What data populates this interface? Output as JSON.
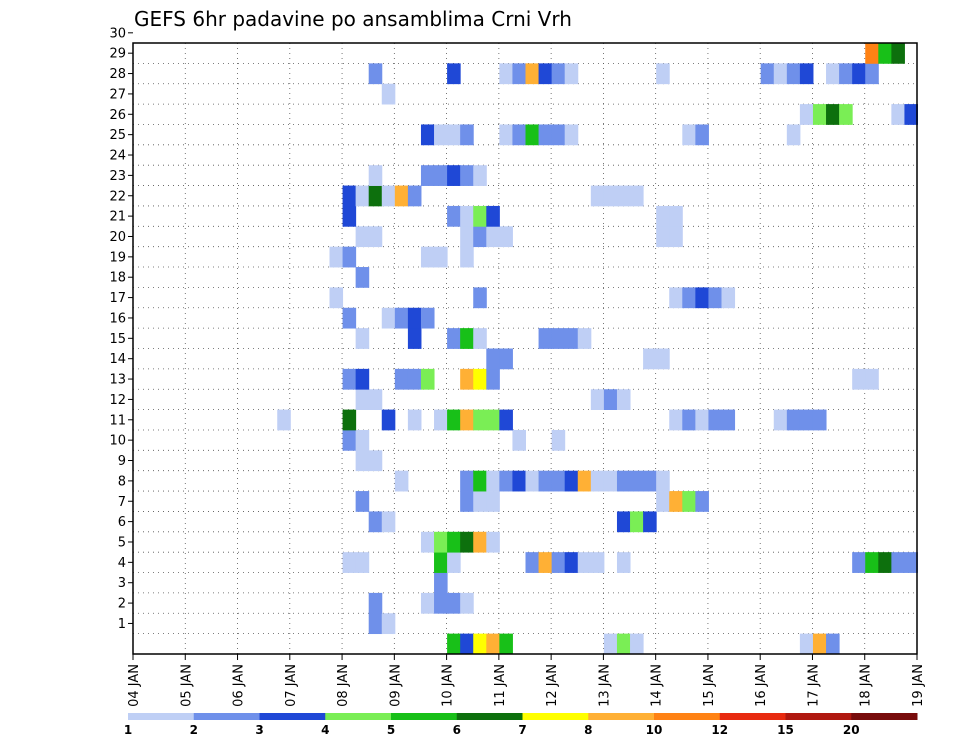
{
  "chart_data": {
    "type": "heatmap",
    "title": "GEFS 6hr padavine po ansamblima Crni Vrh",
    "y_ticks": [
      "1",
      "2",
      "3",
      "4",
      "5",
      "6",
      "7",
      "8",
      "9",
      "10",
      "11",
      "12",
      "13",
      "14",
      "15",
      "16",
      "17",
      "18",
      "19",
      "20",
      "21",
      "22",
      "23",
      "24",
      "25",
      "26",
      "27",
      "28",
      "29",
      "30"
    ],
    "x_ticks": [
      "04 JAN",
      "05 JAN",
      "06 JAN",
      "07 JAN",
      "08 JAN",
      "09 JAN",
      "10 JAN",
      "11 JAN",
      "12 JAN",
      "13 JAN",
      "14 JAN",
      "15 JAN",
      "16 JAN",
      "17 JAN",
      "18 JAN",
      "19 JAN"
    ],
    "x_start_day": 4,
    "steps_per_day": 4,
    "grid": true,
    "legend": {
      "position": "bottom",
      "labels": [
        "1",
        "2",
        "3",
        "4",
        "5",
        "6",
        "7",
        "8",
        "10",
        "12",
        "15",
        "20"
      ],
      "colors": [
        "#bfcff5",
        "#6f90ea",
        "#1f48d6",
        "#7aee55",
        "#18c018",
        "#0d700d",
        "#ffff00",
        "#ffb035",
        "#ff8214",
        "#e82a10",
        "#b01810",
        "#780c0c"
      ]
    },
    "cells": [
      [
        1,
        8.5,
        2
      ],
      [
        1,
        8.75,
        1
      ],
      [
        2,
        8.5,
        2
      ],
      [
        2,
        9.5,
        1
      ],
      [
        2,
        9.75,
        2
      ],
      [
        2,
        10.0,
        2
      ],
      [
        2,
        10.25,
        1
      ],
      [
        3,
        9.75,
        2
      ],
      [
        4,
        8.0,
        1
      ],
      [
        4,
        8.25,
        1
      ],
      [
        4,
        9.75,
        5
      ],
      [
        4,
        10.0,
        1
      ],
      [
        4,
        11.5,
        2
      ],
      [
        4,
        11.75,
        8
      ],
      [
        4,
        12.0,
        2
      ],
      [
        4,
        12.25,
        3
      ],
      [
        4,
        12.5,
        1
      ],
      [
        4,
        12.75,
        1
      ],
      [
        4,
        13.25,
        1
      ],
      [
        4,
        17.75,
        2
      ],
      [
        4,
        18.0,
        5
      ],
      [
        4,
        18.25,
        6
      ],
      [
        4,
        18.5,
        2
      ],
      [
        4,
        18.75,
        2
      ],
      [
        5,
        9.5,
        1
      ],
      [
        5,
        9.75,
        4
      ],
      [
        5,
        10.0,
        5
      ],
      [
        5,
        10.25,
        6
      ],
      [
        5,
        10.5,
        8
      ],
      [
        5,
        10.75,
        1
      ],
      [
        6,
        8.5,
        2
      ],
      [
        6,
        8.75,
        1
      ],
      [
        6,
        13.25,
        3
      ],
      [
        6,
        13.5,
        4
      ],
      [
        6,
        13.75,
        3
      ],
      [
        7,
        8.25,
        2
      ],
      [
        7,
        10.25,
        2
      ],
      [
        7,
        10.5,
        1
      ],
      [
        7,
        10.75,
        1
      ],
      [
        7,
        14.0,
        1
      ],
      [
        7,
        14.25,
        8
      ],
      [
        7,
        14.5,
        4
      ],
      [
        7,
        14.75,
        2
      ],
      [
        8,
        9.0,
        1
      ],
      [
        8,
        10.25,
        2
      ],
      [
        8,
        10.5,
        5
      ],
      [
        8,
        10.75,
        1
      ],
      [
        8,
        11.0,
        2
      ],
      [
        8,
        11.25,
        3
      ],
      [
        8,
        11.5,
        1
      ],
      [
        8,
        11.75,
        2
      ],
      [
        8,
        12.0,
        2
      ],
      [
        8,
        12.25,
        3
      ],
      [
        8,
        12.5,
        8
      ],
      [
        8,
        12.75,
        1
      ],
      [
        8,
        13.0,
        1
      ],
      [
        8,
        13.25,
        2
      ],
      [
        8,
        13.5,
        2
      ],
      [
        8,
        13.75,
        2
      ],
      [
        8,
        14.0,
        1
      ],
      [
        9,
        8.25,
        1
      ],
      [
        9,
        8.5,
        1
      ],
      [
        10,
        8.0,
        2
      ],
      [
        10,
        8.25,
        1
      ],
      [
        10,
        11.25,
        1
      ],
      [
        10,
        12.0,
        1
      ],
      [
        11,
        6.75,
        1
      ],
      [
        11,
        8.0,
        6
      ],
      [
        11,
        8.75,
        3
      ],
      [
        11,
        9.25,
        1
      ],
      [
        11,
        9.75,
        1
      ],
      [
        11,
        10.0,
        5
      ],
      [
        11,
        10.25,
        8
      ],
      [
        11,
        10.5,
        4
      ],
      [
        11,
        10.75,
        4
      ],
      [
        11,
        11.0,
        3
      ],
      [
        11,
        14.25,
        1
      ],
      [
        11,
        14.5,
        2
      ],
      [
        11,
        14.75,
        1
      ],
      [
        11,
        15.0,
        2
      ],
      [
        11,
        15.25,
        2
      ],
      [
        11,
        16.25,
        1
      ],
      [
        11,
        16.5,
        2
      ],
      [
        11,
        16.75,
        2
      ],
      [
        11,
        17.0,
        2
      ],
      [
        12,
        8.25,
        1
      ],
      [
        12,
        8.5,
        1
      ],
      [
        12,
        12.75,
        1
      ],
      [
        12,
        13.0,
        2
      ],
      [
        12,
        13.25,
        1
      ],
      [
        13,
        8.0,
        2
      ],
      [
        13,
        8.25,
        3
      ],
      [
        13,
        9.0,
        2
      ],
      [
        13,
        9.25,
        2
      ],
      [
        13,
        9.5,
        4
      ],
      [
        13,
        10.25,
        8
      ],
      [
        13,
        10.5,
        7
      ],
      [
        13,
        10.75,
        2
      ],
      [
        13,
        17.75,
        1
      ],
      [
        13,
        18.0,
        1
      ],
      [
        14,
        10.75,
        2
      ],
      [
        14,
        11.0,
        2
      ],
      [
        14,
        13.75,
        1
      ],
      [
        14,
        14.0,
        1
      ],
      [
        15,
        8.25,
        1
      ],
      [
        15,
        9.25,
        3
      ],
      [
        15,
        10.0,
        2
      ],
      [
        15,
        10.25,
        5
      ],
      [
        15,
        10.5,
        1
      ],
      [
        15,
        11.75,
        2
      ],
      [
        15,
        12.0,
        2
      ],
      [
        15,
        12.25,
        2
      ],
      [
        15,
        12.5,
        1
      ],
      [
        16,
        8.0,
        2
      ],
      [
        16,
        8.75,
        1
      ],
      [
        16,
        9.0,
        2
      ],
      [
        16,
        9.25,
        3
      ],
      [
        16,
        9.5,
        2
      ],
      [
        17,
        7.75,
        1
      ],
      [
        17,
        10.5,
        2
      ],
      [
        17,
        14.25,
        1
      ],
      [
        17,
        14.5,
        2
      ],
      [
        17,
        14.75,
        3
      ],
      [
        17,
        15.0,
        2
      ],
      [
        17,
        15.25,
        1
      ],
      [
        18,
        8.25,
        2
      ],
      [
        19,
        7.75,
        1
      ],
      [
        19,
        8.0,
        2
      ],
      [
        19,
        9.5,
        1
      ],
      [
        19,
        9.75,
        1
      ],
      [
        19,
        10.25,
        1
      ],
      [
        20,
        8.25,
        1
      ],
      [
        20,
        8.5,
        1
      ],
      [
        20,
        10.25,
        1
      ],
      [
        20,
        10.5,
        2
      ],
      [
        20,
        10.75,
        1
      ],
      [
        20,
        11.0,
        1
      ],
      [
        20,
        14.0,
        1
      ],
      [
        20,
        14.25,
        1
      ],
      [
        21,
        8.0,
        3
      ],
      [
        21,
        10.0,
        2
      ],
      [
        21,
        10.25,
        1
      ],
      [
        21,
        10.5,
        4
      ],
      [
        21,
        10.75,
        3
      ],
      [
        21,
        14.0,
        1
      ],
      [
        21,
        14.25,
        1
      ],
      [
        22,
        8.0,
        3
      ],
      [
        22,
        8.25,
        1
      ],
      [
        22,
        8.5,
        6
      ],
      [
        22,
        8.75,
        1
      ],
      [
        22,
        9.0,
        8
      ],
      [
        22,
        9.25,
        2
      ],
      [
        22,
        12.75,
        1
      ],
      [
        22,
        13.0,
        1
      ],
      [
        22,
        13.25,
        1
      ],
      [
        22,
        13.5,
        1
      ],
      [
        23,
        8.5,
        1
      ],
      [
        23,
        9.5,
        2
      ],
      [
        23,
        9.75,
        2
      ],
      [
        23,
        10.0,
        3
      ],
      [
        23,
        10.25,
        2
      ],
      [
        23,
        10.5,
        1
      ],
      [
        25,
        9.5,
        3
      ],
      [
        25,
        9.75,
        1
      ],
      [
        25,
        10.0,
        1
      ],
      [
        25,
        10.25,
        2
      ],
      [
        25,
        11.0,
        1
      ],
      [
        25,
        11.25,
        2
      ],
      [
        25,
        11.5,
        5
      ],
      [
        25,
        11.75,
        2
      ],
      [
        25,
        12.0,
        2
      ],
      [
        25,
        12.25,
        1
      ],
      [
        25,
        14.5,
        1
      ],
      [
        25,
        14.75,
        2
      ],
      [
        25,
        16.5,
        1
      ],
      [
        26,
        16.75,
        1
      ],
      [
        26,
        17.0,
        4
      ],
      [
        26,
        17.25,
        6
      ],
      [
        26,
        17.5,
        4
      ],
      [
        26,
        18.5,
        1
      ],
      [
        26,
        18.75,
        3
      ],
      [
        27,
        8.75,
        1
      ],
      [
        28,
        8.5,
        2
      ],
      [
        28,
        10.0,
        3
      ],
      [
        28,
        11.0,
        1
      ],
      [
        28,
        11.25,
        2
      ],
      [
        28,
        11.5,
        8
      ],
      [
        28,
        11.75,
        3
      ],
      [
        28,
        12.0,
        2
      ],
      [
        28,
        12.25,
        1
      ],
      [
        28,
        14.0,
        1
      ],
      [
        28,
        16.0,
        2
      ],
      [
        28,
        16.25,
        1
      ],
      [
        28,
        16.5,
        2
      ],
      [
        28,
        16.75,
        3
      ],
      [
        28,
        17.25,
        1
      ],
      [
        28,
        17.5,
        2
      ],
      [
        28,
        17.75,
        3
      ],
      [
        28,
        18.0,
        2
      ],
      [
        29,
        18.0,
        9
      ],
      [
        29,
        18.25,
        5
      ],
      [
        29,
        18.5,
        6
      ],
      [
        0,
        10.0,
        5
      ],
      [
        0,
        10.25,
        3
      ],
      [
        0,
        10.5,
        7
      ],
      [
        0,
        10.75,
        8
      ],
      [
        0,
        11.0,
        5
      ],
      [
        0,
        13.0,
        1
      ],
      [
        0,
        13.25,
        4
      ],
      [
        0,
        13.5,
        1
      ],
      [
        0,
        16.75,
        1
      ],
      [
        0,
        17.0,
        8
      ],
      [
        0,
        17.25,
        2
      ]
    ]
  }
}
